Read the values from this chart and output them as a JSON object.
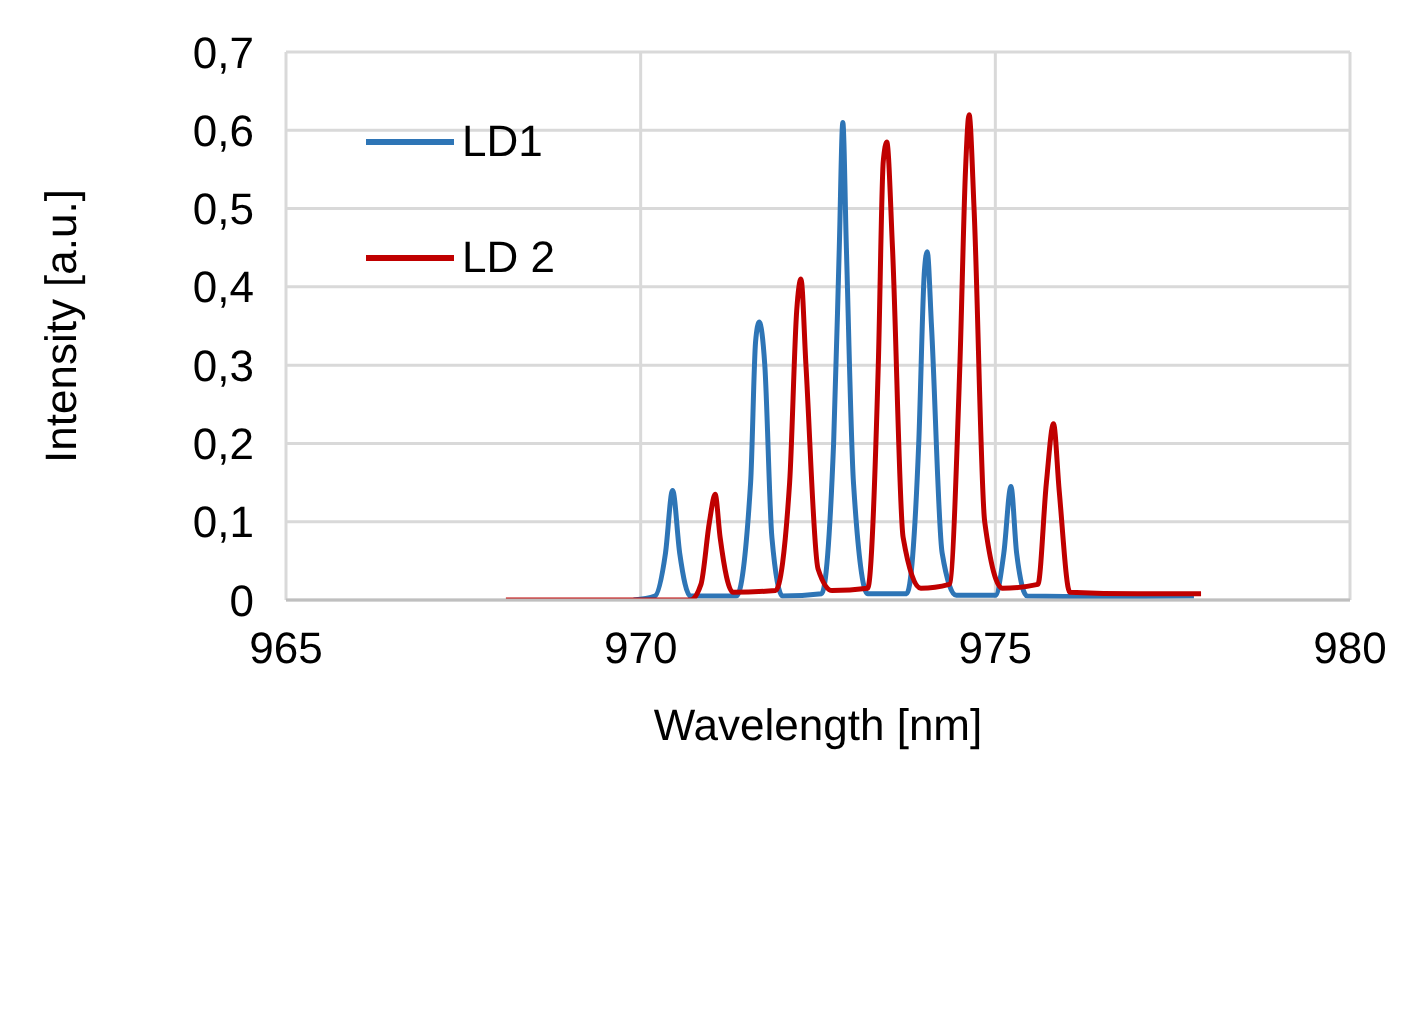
{
  "chart_data": {
    "type": "line",
    "xlabel": "Wavelength [nm]",
    "ylabel": "Intensity [a.u.]",
    "xlim": [
      965,
      980
    ],
    "xticks": [
      965,
      970,
      975,
      980
    ],
    "ylim": [
      0,
      0.7
    ],
    "yticks": [
      0,
      {
        "value": 0.1,
        "label": "0,1"
      },
      {
        "value": 0.2,
        "label": "0,2"
      },
      {
        "value": 0.3,
        "label": "0,3"
      },
      {
        "value": 0.4,
        "label": "0,4"
      },
      {
        "value": 0.5,
        "label": "0,5"
      },
      {
        "value": 0.6,
        "label": "0,6"
      },
      {
        "value": 0.7,
        "label": "0,7"
      }
    ],
    "grid": true,
    "legend": "top left",
    "marker": "none",
    "line_style": "solid",
    "series": [
      {
        "name": "LD1",
        "color": "#2e75b6",
        "x": [
          969.9,
          970.2,
          970.35,
          970.45,
          970.55,
          970.7,
          971.35,
          971.55,
          971.62,
          971.67,
          971.75,
          971.85,
          972.0,
          972.55,
          972.72,
          972.8,
          972.85,
          972.9,
          973.0,
          973.2,
          973.75,
          973.92,
          974.0,
          974.04,
          974.1,
          974.25,
          974.45,
          975.0,
          975.12,
          975.22,
          975.3,
          975.45,
          976.5,
          977.8
        ],
        "values": [
          0,
          0.005,
          0.06,
          0.14,
          0.06,
          0.005,
          0.005,
          0.15,
          0.33,
          0.355,
          0.3,
          0.08,
          0.005,
          0.008,
          0.2,
          0.45,
          0.61,
          0.45,
          0.15,
          0.008,
          0.008,
          0.2,
          0.42,
          0.445,
          0.35,
          0.06,
          0.006,
          0.006,
          0.06,
          0.145,
          0.06,
          0.005,
          0.004,
          0.005
        ]
      },
      {
        "name": "LD 2",
        "color": "#c00000",
        "x": [
          968.1,
          970.7,
          970.85,
          970.97,
          971.05,
          971.12,
          971.3,
          971.9,
          972.1,
          972.2,
          972.26,
          972.33,
          972.5,
          972.7,
          973.2,
          973.35,
          973.42,
          973.47,
          973.55,
          973.7,
          973.95,
          974.35,
          974.5,
          974.58,
          974.63,
          974.7,
          974.85,
          975.1,
          975.6,
          975.72,
          975.82,
          975.9,
          976.05,
          977,
          977.9
        ],
        "values": [
          0,
          0,
          0.02,
          0.1,
          0.135,
          0.08,
          0.01,
          0.012,
          0.15,
          0.37,
          0.41,
          0.3,
          0.04,
          0.012,
          0.015,
          0.3,
          0.56,
          0.585,
          0.45,
          0.08,
          0.015,
          0.02,
          0.3,
          0.55,
          0.62,
          0.5,
          0.1,
          0.015,
          0.02,
          0.15,
          0.225,
          0.14,
          0.01,
          0.008,
          0.008
        ]
      }
    ]
  }
}
